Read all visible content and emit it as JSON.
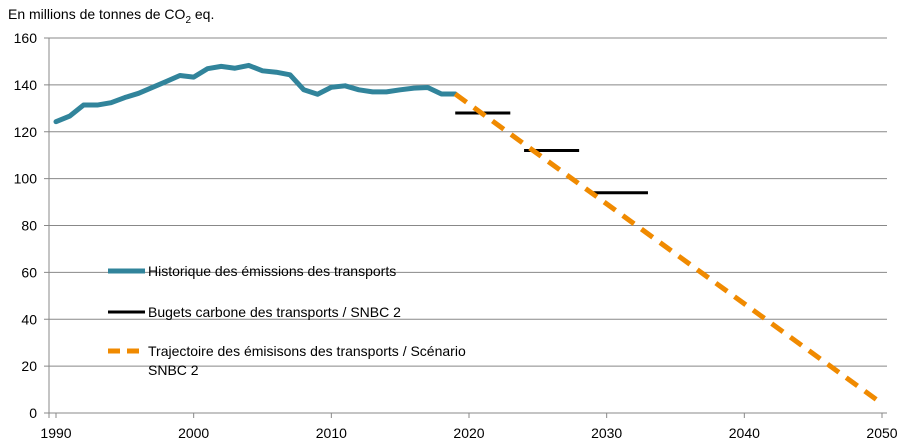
{
  "chart_data": {
    "type": "line",
    "title": "",
    "ylabel_prefix": "En millions de tonnes  de CO",
    "ylabel_sub": "2",
    "ylabel_suffix": " eq.",
    "xlim": [
      1990,
      2050
    ],
    "ylim": [
      0,
      160
    ],
    "x_ticks": [
      "1990",
      "2000",
      "2010",
      "2020",
      "2030",
      "2040",
      "2050"
    ],
    "y_ticks": [
      "0",
      "20",
      "40",
      "60",
      "80",
      "100",
      "120",
      "140",
      "160"
    ],
    "grid": "horizontal",
    "legend_placement": "center-left",
    "colors": {
      "historique": "#31849B",
      "budgets": "#000000",
      "trajectoire": "#F08A00",
      "grid": "#888888"
    },
    "series": [
      {
        "name": "Historique des émissions des transports",
        "style": "solid",
        "x": [
          1990,
          1991,
          1992,
          1993,
          1994,
          1995,
          1996,
          1997,
          1998,
          1999,
          2000,
          2001,
          2002,
          2003,
          2004,
          2005,
          2006,
          2007,
          2008,
          2009,
          2010,
          2011,
          2012,
          2013,
          2014,
          2015,
          2016,
          2017,
          2018,
          2019
        ],
        "y": [
          124.3,
          126.7,
          131.4,
          131.4,
          132.4,
          134.6,
          136.4,
          138.9,
          141.4,
          144,
          143.3,
          146.9,
          147.9,
          147.1,
          148.3,
          146,
          145.4,
          144.3,
          137.9,
          136,
          139,
          139.6,
          137.9,
          137,
          137,
          137.9,
          138.6,
          138.9,
          136.1,
          136.1
        ]
      },
      {
        "name": "Bugets carbone des transports / SNBC 2",
        "style": "segments",
        "segments": [
          {
            "x": [
              2019,
              2023
            ],
            "y": 128
          },
          {
            "x": [
              2024,
              2028
            ],
            "y": 112
          },
          {
            "x": [
              2029,
              2033
            ],
            "y": 94
          }
        ]
      },
      {
        "name": "Trajectoire des émisisons des transports  / Scénario",
        "name_line2": "SNBC 2",
        "style": "dashed",
        "x": [
          2019,
          2050
        ],
        "y": [
          136.1,
          4
        ]
      }
    ]
  }
}
